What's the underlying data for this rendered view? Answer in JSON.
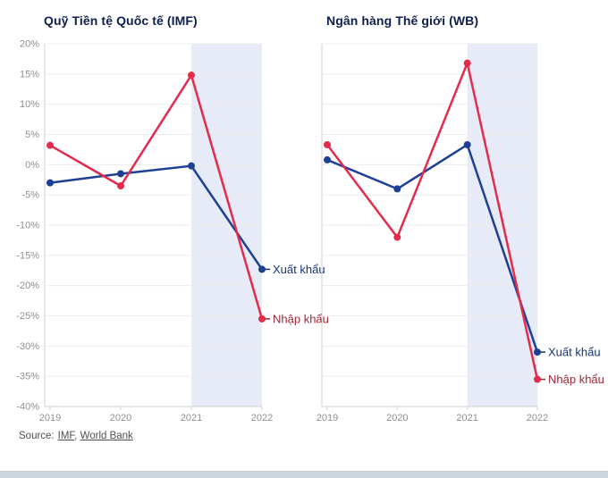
{
  "page": {
    "source_label": "Source:",
    "source_links": [
      "IMF",
      "World Bank"
    ],
    "comma": ","
  },
  "colors": {
    "export_line": "#1d3f94",
    "export_label": "#17356f",
    "import_line": "#e32b4c",
    "import_label": "#a32638",
    "title": "#0d1f4e",
    "axis_text": "#8f8f8f",
    "grid": "#ececec",
    "axis_line": "#d2d2d2",
    "band": "#e7ebf7",
    "bottom_strip": "#cdd6dc"
  },
  "chart_data": [
    {
      "type": "line",
      "title": "Quỹ Tiền tệ Quốc tế (IMF)",
      "categories": [
        "2019",
        "2020",
        "2021",
        "2022"
      ],
      "series": [
        {
          "name": "Xuất khẩu",
          "color_key": "export",
          "values": [
            -3,
            -1.5,
            -0.2,
            -17.3
          ]
        },
        {
          "name": "Nhập khẩu",
          "color_key": "import",
          "values": [
            3.2,
            -3.5,
            14.8,
            -25.5
          ]
        }
      ],
      "ylim": [
        -40,
        20
      ],
      "ytick_step": 5,
      "ytick_suffix": "%",
      "show_y_labels": true,
      "grid": true,
      "highlight_band_x": [
        "2021",
        "2022"
      ],
      "legend_position": "line-end"
    },
    {
      "type": "line",
      "title": "Ngân hàng Thế giới (WB)",
      "categories": [
        "2019",
        "2020",
        "2021",
        "2022"
      ],
      "series": [
        {
          "name": "Xuất khẩu",
          "color_key": "export",
          "values": [
            0.8,
            -4,
            3.3,
            -31
          ]
        },
        {
          "name": "Nhập khẩu",
          "color_key": "import",
          "values": [
            3.3,
            -12,
            16.8,
            -35.5
          ]
        }
      ],
      "ylim": [
        -40,
        20
      ],
      "ytick_step": 5,
      "ytick_suffix": "%",
      "show_y_labels": false,
      "grid": true,
      "highlight_band_x": [
        "2021",
        "2022"
      ],
      "legend_position": "line-end"
    }
  ]
}
